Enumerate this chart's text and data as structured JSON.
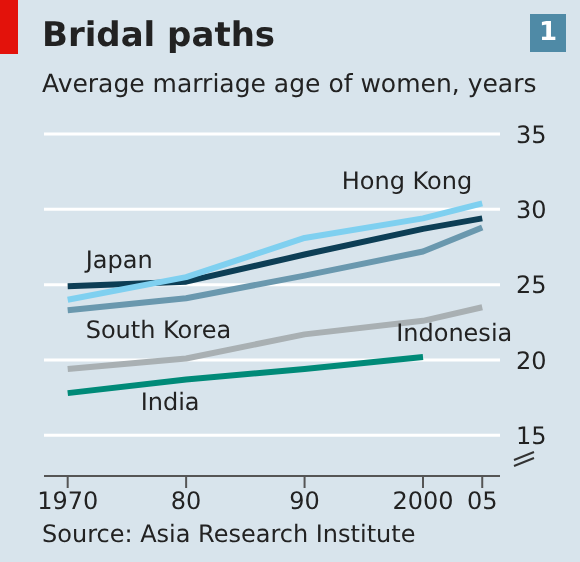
{
  "chart_data": {
    "type": "line",
    "title": "Bridal paths",
    "subtitle": "Average marriage age of women, years",
    "x": [
      1970,
      1980,
      1990,
      2000,
      2005
    ],
    "series": [
      {
        "name": "Japan",
        "color": "#0d3e55",
        "values": [
          24.9,
          25.2,
          27.0,
          28.7,
          29.4
        ]
      },
      {
        "name": "Hong Kong",
        "color": "#7fd0f0",
        "values": [
          24.0,
          25.5,
          28.1,
          29.4,
          30.4
        ]
      },
      {
        "name": "South Korea",
        "color": "#6a98ae",
        "values": [
          23.3,
          24.1,
          25.6,
          27.2,
          28.8
        ]
      },
      {
        "name": "Indonesia",
        "color": "#a9b0b3",
        "values": [
          19.4,
          20.1,
          21.7,
          22.6,
          23.5
        ]
      },
      {
        "name": "India",
        "color": "#008a78",
        "values": [
          17.8,
          18.7,
          19.4,
          20.2,
          null
        ]
      }
    ],
    "xlim": [
      1968,
      2006.5
    ],
    "xticks": [
      1970,
      {
        "value": 1980,
        "label": "80"
      },
      {
        "value": 1990,
        "label": "90"
      },
      2000,
      {
        "value": 2005,
        "label": "05"
      }
    ],
    "ylim": [
      12.3,
      35
    ],
    "yticks": [
      15,
      20,
      25,
      30,
      35
    ],
    "grid": "y",
    "marker": "none",
    "line_style": "solid",
    "annotations": [
      "Source: Asia Research Institute",
      "1"
    ]
  }
}
